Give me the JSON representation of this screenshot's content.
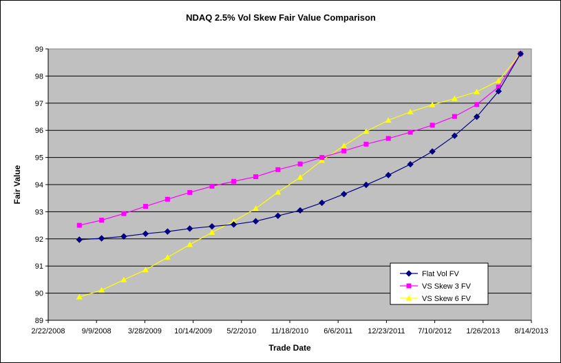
{
  "chart_data": {
    "type": "line",
    "title": "NDAQ 2.5% Vol Skew Fair Value Comparison",
    "xlabel": "Trade Date",
    "ylabel": "Fair Value",
    "x_ticks": [
      "2/22/2008",
      "9/9/2008",
      "3/28/2009",
      "10/14/2009",
      "5/2/2010",
      "11/18/2010",
      "6/6/2011",
      "12/23/2011",
      "7/10/2012",
      "1/26/2013",
      "8/14/2013"
    ],
    "y_ticks": [
      "89",
      "90",
      "91",
      "92",
      "93",
      "94",
      "95",
      "96",
      "97",
      "98",
      "99"
    ],
    "xlim": [
      "2008-02-22",
      "2013-08-14"
    ],
    "ylim": [
      89,
      99
    ],
    "x": [
      "2008-06-30",
      "2008-09-30",
      "2008-12-31",
      "2009-03-31",
      "2009-06-30",
      "2009-09-30",
      "2009-12-31",
      "2010-03-31",
      "2010-06-30",
      "2010-09-30",
      "2010-12-31",
      "2011-03-31",
      "2011-06-30",
      "2011-09-30",
      "2011-12-31",
      "2012-03-31",
      "2012-06-30",
      "2012-09-30",
      "2012-12-31",
      "2013-03-31",
      "2013-06-30"
    ],
    "series": [
      {
        "name": "Flat Vol FV",
        "color": "#000080",
        "marker": "diamond",
        "values": [
          91.97,
          92.02,
          92.09,
          92.19,
          92.27,
          92.38,
          92.46,
          92.53,
          92.65,
          92.85,
          93.05,
          93.33,
          93.65,
          93.99,
          94.35,
          94.75,
          95.22,
          95.8,
          96.5,
          97.44,
          98.82
        ]
      },
      {
        "name": "VS Skew 3 FV",
        "color": "#FF00FF",
        "marker": "square",
        "values": [
          92.5,
          92.69,
          92.93,
          93.2,
          93.46,
          93.71,
          93.94,
          94.12,
          94.29,
          94.55,
          94.76,
          95.0,
          95.24,
          95.49,
          95.7,
          95.93,
          96.19,
          96.51,
          96.95,
          97.6,
          98.82
        ]
      },
      {
        "name": "VS Skew 6 FV",
        "color": "#FFFF00",
        "marker": "triangle",
        "values": [
          89.86,
          90.11,
          90.49,
          90.86,
          91.32,
          91.79,
          92.24,
          92.65,
          93.12,
          93.72,
          94.27,
          94.89,
          95.43,
          95.96,
          96.37,
          96.68,
          96.94,
          97.17,
          97.42,
          97.83,
          98.82
        ]
      }
    ],
    "grid": "horizontal",
    "legend_position": "bottom-right",
    "plot_background": "#C0C0C0"
  }
}
